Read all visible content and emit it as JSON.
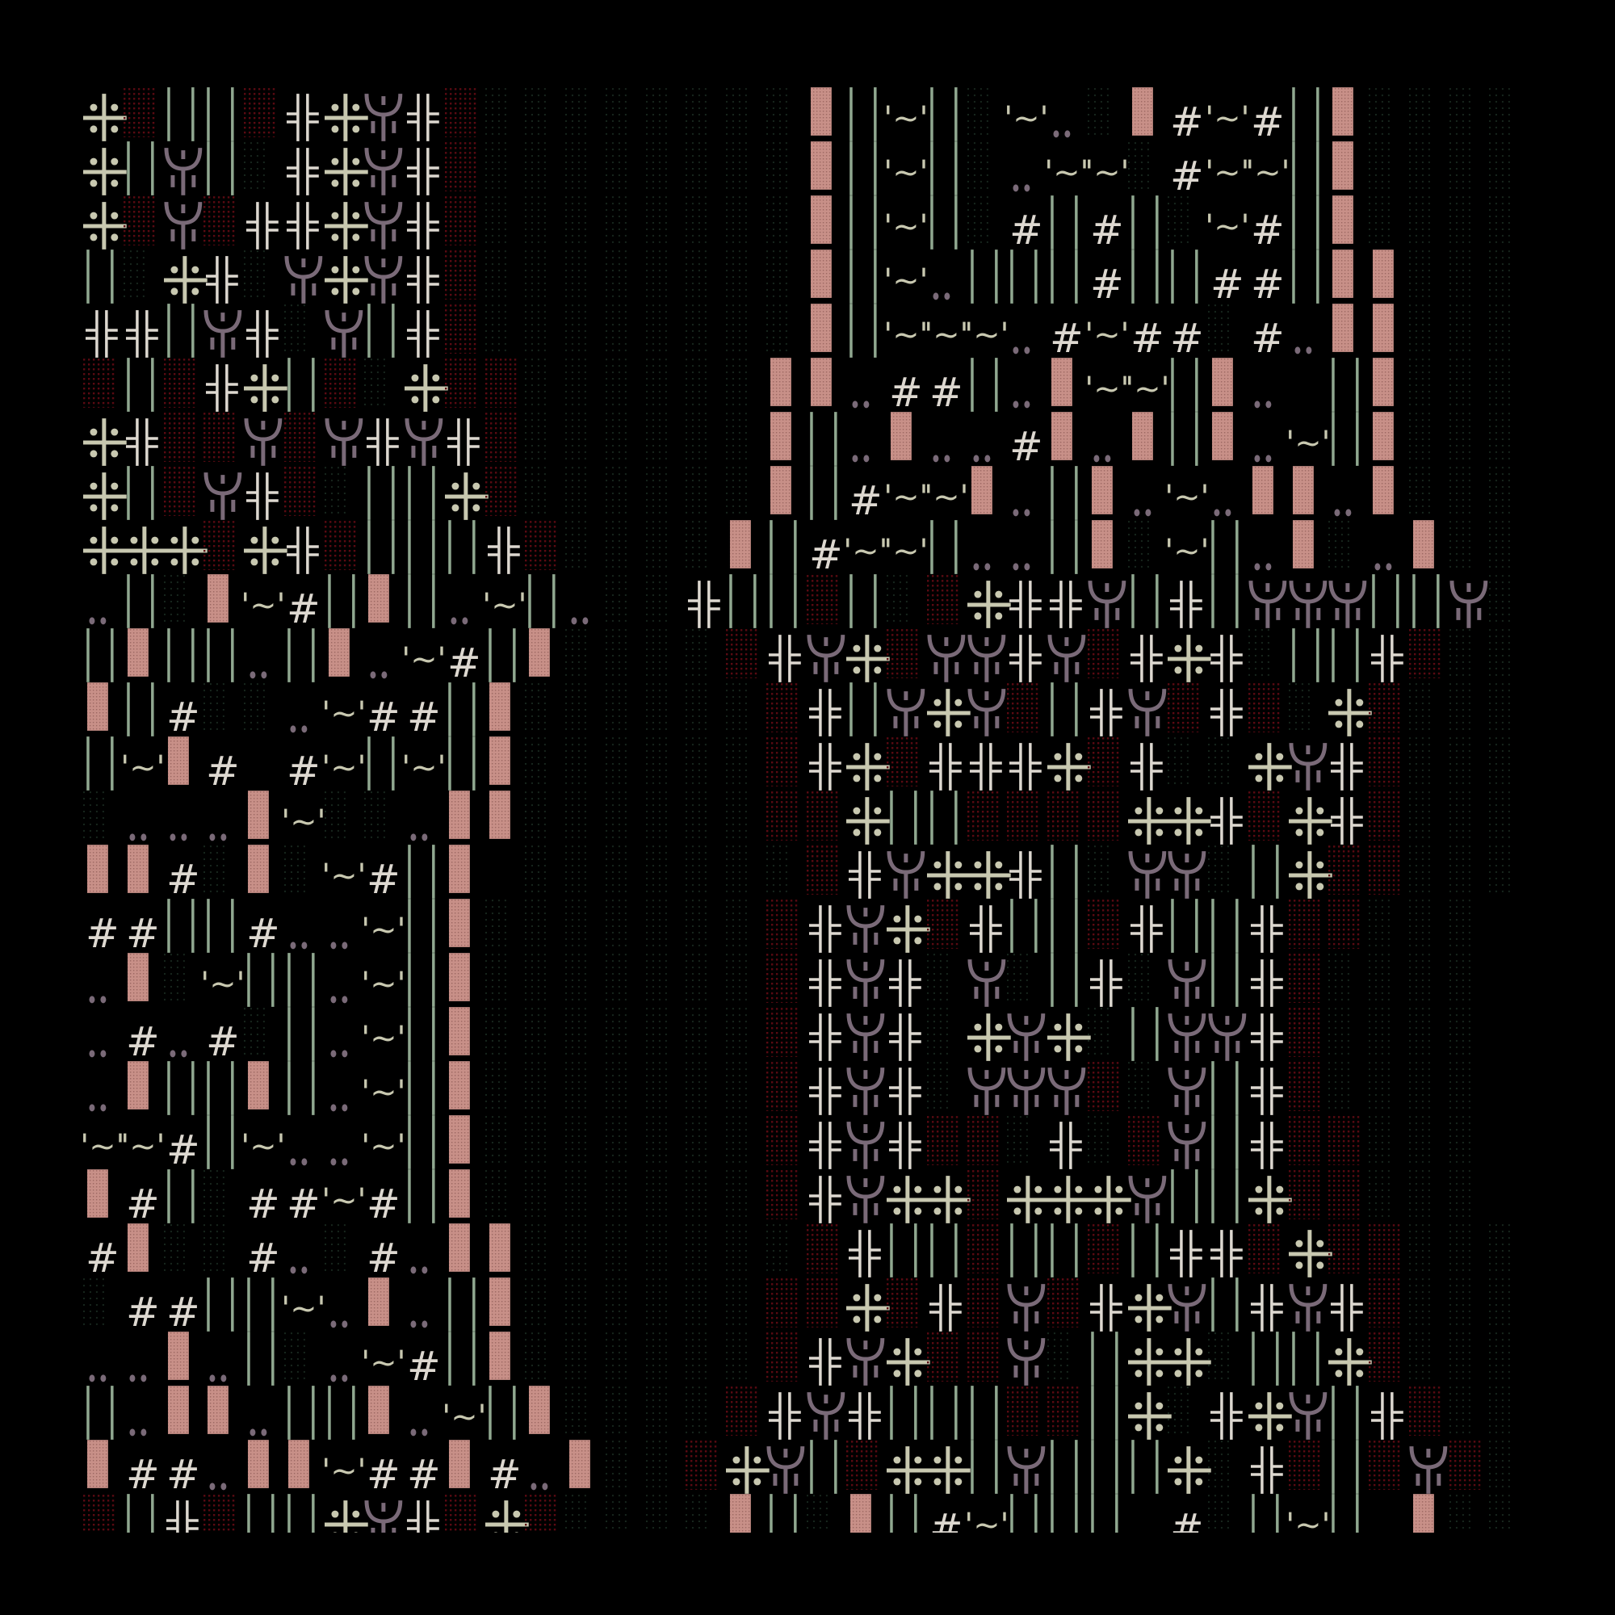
{
  "palette": {
    "background": "#000000",
    "cross_dots": "#c8c8b0",
    "double_cross": "#ddd8d0",
    "trident": "#7a6a78",
    "bars": "#90a890",
    "red_dots": "#5c0a12",
    "green_dots": "#17261d",
    "pink_block": "#c89088",
    "hash": "#ddd8d0",
    "tilde": "#c8c8b0",
    "dots": "#7a6a78"
  },
  "legend": {
    "A": "cross-dots-icon",
    "H": "double-cross-icon",
    "Y": "trident-icon",
    "I": "double-bar-icon",
    "R": "red-dot-texture",
    "G": "green-dot-texture",
    "P": "pink-block",
    "#": "hash-glyph",
    "~": "tilde-glyph",
    ".": "double-dot-glyph",
    "_": "blank"
  },
  "glyph_text": {
    "hash": "#",
    "tilde": "'~'"
  },
  "rows": [
    "ARIIRHAYHRGGGGGGGGPI~IG~.GP#~#IPGGGG",
    "AIYIGHAYHRGGGGGGGGPI~IG.~~G#~~IPGGGG",
    "ARYRHHAYHRGGGGGGGGPI~IG#I#IG~#IPGGGG",
    "IGAHGYAYHRGGGGGGGGPI~.III#II##IPPGGG",
    "HHIYHGYIHRGGGGGGGGPI~~~.#~##G#.PPGGG",
    "RIRHAIRGARRGGGGGGPP.##I.P~~IP._IPGGG",
    "AHRRYRYHYHRGGGGGGPI.P..#P.PIP.~IPGGG",
    "AIRYHRGIIARGGGGGGPI#~~P.IP.~.PP.PGGG",
    "AAARAHRIIIHRGGGGPI#~~I..IPG~I.PG.PGG",
    ".IGP~#IPI.~I.GGHIIRIGRAHHYIHIYYYIIYG",
    "IPII.IP.~#IPGGGGRHYARYYHYRHAHGIIHRGG",
    "PI#GG.~##IPGGGGGGRHIYAYRIHYRHRGARGGG",
    "I~P#_#~I~IPGGGGGGRHARHHHARHGGAYHRGGG",
    "G...P~GG.PPGGGGGGRRAIIRRRRAAHRAHRGGG",
    "PP#GPG~#IP_GGGGGGGRHYAAHIGYYGIARRGGG",
    "##II#..~IPGGGGGGGRHYARHIIRHIIHRRGGG",
    ".PG~II.~IPGGGGGGGRHYHGYGIHGYIHRGGGG",
    ".#.#GI.~IPGGGGGGGRHYHGAYAGIYYHRGGGG",
    ".PIIPI.~IPGGGGGGGRHYHGYYYRGYIHRGGGG",
    "~~#I~..~IPGGGGGGGRHYHRRGHGRYIHRRGGG",
    "P#IG##~#IPGGGGGGGRHYAARAAAYIIARRGGG",
    "#PGG#.G#.PPGGGGGGGRHIIRIIRIHHRARRGGG",
    "G##II~.P.IPGGGGGGRRARHRYRHAYIHYHRGGG",
    "..P.IG.~#IPGGGGGGRHYARRYGIAAGIIARGGG",
    "I.PP.IIP.~IPGGGGRHYHIIIRRIAGHAYIHRGG",
    "P##.PP~##P#.PGGRAYIRAAIYIIIAGHRIRYRG",
    "RIHRIIAYHRARGGGGPIGPI#~III_#GI~I_PGG"
  ]
}
